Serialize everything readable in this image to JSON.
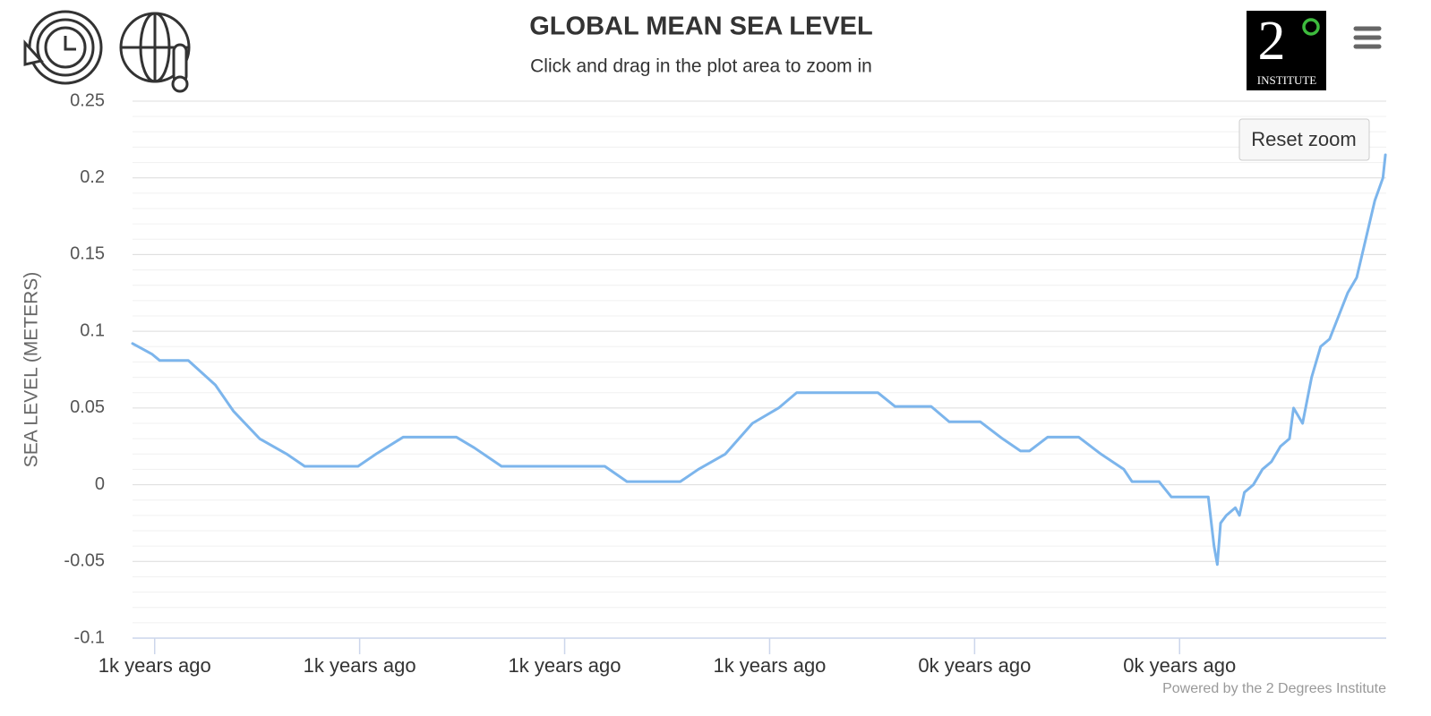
{
  "chart_data": {
    "type": "line",
    "title": "GLOBAL MEAN SEA LEVEL",
    "subtitle": "Click and drag in the plot area to zoom in",
    "y_axis_label": "SEA LEVEL (METERS)",
    "credits": "Powered by the 2 Degrees Institute",
    "reset_button": "Reset zoom",
    "logo": {
      "number": "2",
      "name": "INSTITUTE"
    },
    "xlim": [
      473,
      2002
    ],
    "xticks": [
      {
        "value": 500,
        "label": "1k years ago"
      },
      {
        "value": 750,
        "label": "1k years ago"
      },
      {
        "value": 1000,
        "label": "1k years ago"
      },
      {
        "value": 1250,
        "label": "1k years ago"
      },
      {
        "value": 1500,
        "label": "0k years ago"
      },
      {
        "value": 1750,
        "label": "0k years ago"
      }
    ],
    "ylim": [
      -0.1,
      0.25
    ],
    "yticks": [
      -0.1,
      -0.05,
      0,
      0.05,
      0.1,
      0.15,
      0.2,
      0.25
    ],
    "yminorticks": [
      -0.09,
      -0.08,
      -0.07,
      -0.06,
      -0.04,
      -0.03,
      -0.02,
      -0.01,
      0.01,
      0.02,
      0.03,
      0.04,
      0.06,
      0.07,
      0.08,
      0.09,
      0.11,
      0.12,
      0.13,
      0.14,
      0.16,
      0.17,
      0.18,
      0.19,
      0.21,
      0.22,
      0.23,
      0.24
    ],
    "grid": true,
    "color": "#7cb5ec",
    "x": [
      473,
      497,
      506,
      541,
      574,
      596,
      628,
      661,
      683,
      748,
      770,
      803,
      868,
      890,
      923,
      1049,
      1076,
      1141,
      1163,
      1196,
      1229,
      1261,
      1283,
      1382,
      1403,
      1447,
      1469,
      1507,
      1534,
      1556,
      1567,
      1589,
      1627,
      1654,
      1682,
      1692,
      1725,
      1740,
      1785,
      1792,
      1796,
      1800,
      1807,
      1818,
      1823,
      1829,
      1840,
      1851,
      1862,
      1873,
      1884,
      1889,
      1900,
      1911,
      1922,
      1933,
      1944,
      1955,
      1966,
      1977,
      1988,
      1998,
      2001
    ],
    "values": [
      0.092,
      0.085,
      0.081,
      0.081,
      0.065,
      0.048,
      0.03,
      0.02,
      0.012,
      0.012,
      0.02,
      0.031,
      0.031,
      0.024,
      0.012,
      0.012,
      0.002,
      0.002,
      0.01,
      0.02,
      0.04,
      0.05,
      0.06,
      0.06,
      0.051,
      0.051,
      0.041,
      0.041,
      0.03,
      0.022,
      0.022,
      0.031,
      0.031,
      0.02,
      0.01,
      0.002,
      0.002,
      -0.008,
      -0.008,
      -0.04,
      -0.052,
      -0.025,
      -0.02,
      -0.015,
      -0.02,
      -0.005,
      0,
      0.01,
      0.015,
      0.025,
      0.03,
      0.05,
      0.04,
      0.07,
      0.09,
      0.095,
      0.11,
      0.125,
      0.135,
      0.16,
      0.185,
      0.2,
      0.215
    ]
  }
}
